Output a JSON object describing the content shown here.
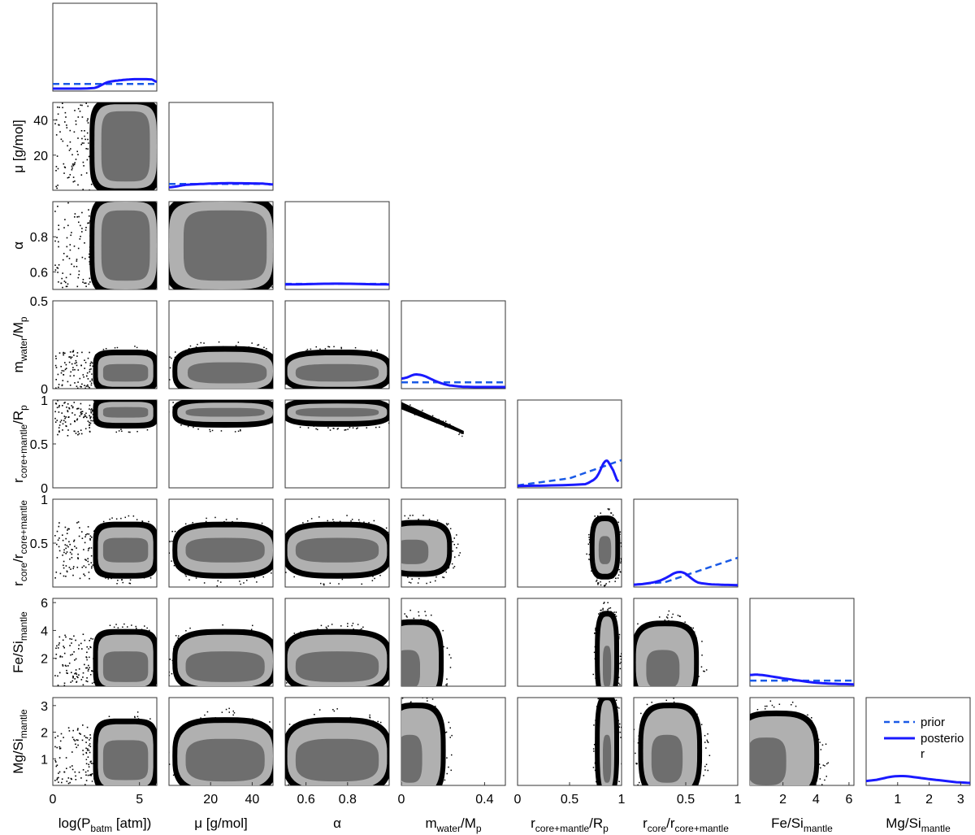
{
  "figure": {
    "type": "corner-plot",
    "colors": {
      "posterior_line": "#1a1aff",
      "prior_line": "#1a5ae6",
      "contour_outer": "#b0b0b0",
      "contour_inner": "#6e6e6e",
      "samples": "#000000"
    }
  },
  "chart_data": {
    "type": "corner",
    "parameters": [
      {
        "key": "p0",
        "label_main": "log(P",
        "label_sub": "batm",
        "label_tail": " [atm])",
        "range": [
          0,
          6
        ],
        "ticks": [
          0,
          5
        ],
        "tick_labels": [
          "0",
          "5"
        ],
        "ylabel": ""
      },
      {
        "key": "p1",
        "label_main": "μ [g/mol]",
        "label_sub": "",
        "label_tail": "",
        "range": [
          0,
          50
        ],
        "ticks": [
          20,
          40
        ],
        "tick_labels": [
          "20",
          "40"
        ],
        "ylabel_main": "μ [g/mol]",
        "ylabel_sub": "",
        "ylabel_tail": "",
        "yticks": [
          20,
          40
        ],
        "ytick_labels": [
          "20",
          "40"
        ]
      },
      {
        "key": "p2",
        "label_main": "α",
        "label_sub": "",
        "label_tail": "",
        "range": [
          0.5,
          1.0
        ],
        "ticks": [
          0.6,
          0.8
        ],
        "tick_labels": [
          "0.6",
          "0.8"
        ],
        "ylabel_main": "α",
        "ylabel_sub": "",
        "ylabel_tail": "",
        "yticks": [
          0.6,
          0.8
        ],
        "ytick_labels": [
          "0.6",
          "0.8"
        ]
      },
      {
        "key": "p3",
        "label_main": "m",
        "label_sub": "water",
        "label_tail": "/M",
        "label_sub2": "p",
        "range": [
          0,
          0.5
        ],
        "ticks": [
          0,
          0.4
        ],
        "tick_labels": [
          "0",
          "0.4"
        ],
        "ylabel_main": "m",
        "ylabel_sub": "water",
        "ylabel_tail": "/M",
        "ylabel_sub2": "p",
        "yticks": [
          0,
          0.5
        ],
        "ytick_labels": [
          "0",
          "0.5"
        ]
      },
      {
        "key": "p4",
        "label_main": "r",
        "label_sub": "core+mantle",
        "label_tail": "/R",
        "label_sub2": "p",
        "range": [
          0,
          1
        ],
        "ticks": [
          0,
          0.5,
          1
        ],
        "tick_labels": [
          "0",
          "0.5",
          "1"
        ],
        "ylabel_main": "r",
        "ylabel_sub": "core+mantle",
        "ylabel_tail": "/R",
        "ylabel_sub2": "p",
        "yticks": [
          0,
          0.5,
          1
        ],
        "ytick_labels": [
          "0",
          "0.5",
          "1"
        ]
      },
      {
        "key": "p5",
        "label_main": "r",
        "label_sub": "core",
        "label_tail": "/r",
        "label_sub2": "core+mantle",
        "range": [
          0,
          1
        ],
        "ticks": [
          0.5,
          1
        ],
        "tick_labels": [
          "0.5",
          "1"
        ],
        "ylabel_main": "r",
        "ylabel_sub": "core",
        "ylabel_tail": "/r",
        "ylabel_sub2": "core+mantle",
        "yticks": [
          0.5,
          1
        ],
        "ytick_labels": [
          "0.5",
          "1"
        ]
      },
      {
        "key": "p6",
        "label_main": "Fe/Si",
        "label_sub": "mantle",
        "label_tail": "",
        "range": [
          0,
          6.3
        ],
        "ticks": [
          2,
          4,
          6
        ],
        "tick_labels": [
          "2",
          "4",
          "6"
        ],
        "ylabel_main": "Fe/Si",
        "ylabel_sub": "mantle",
        "ylabel_tail": "",
        "yticks": [
          2,
          4,
          6
        ],
        "ytick_labels": [
          "2",
          "4",
          "6"
        ]
      },
      {
        "key": "p7",
        "label_main": "Mg/Si",
        "label_sub": "mantle",
        "label_tail": "",
        "range": [
          0,
          3.3
        ],
        "ticks": [
          1,
          2,
          3
        ],
        "tick_labels": [
          "1",
          "2",
          "3"
        ],
        "ylabel_main": "Mg/Si",
        "ylabel_sub": "mantle",
        "ylabel_tail": "",
        "yticks": [
          1,
          2,
          3
        ],
        "ytick_labels": [
          "1",
          "2",
          "3"
        ]
      }
    ],
    "diagonal": [
      {
        "param": "p0",
        "prior": [
          [
            0,
            0.07
          ],
          [
            6,
            0.07
          ]
        ],
        "posterior": [
          [
            0,
            0.01
          ],
          [
            2.4,
            0.01
          ],
          [
            3.2,
            0.1
          ],
          [
            4.5,
            0.13
          ],
          [
            5.7,
            0.13
          ],
          [
            6,
            0.09
          ]
        ],
        "ymax": 1.0
      },
      {
        "param": "p1",
        "prior": [
          [
            0,
            0.06
          ],
          [
            50,
            0.06
          ]
        ],
        "posterior": [
          [
            0,
            0.01
          ],
          [
            8,
            0.05
          ],
          [
            25,
            0.07
          ],
          [
            45,
            0.065
          ],
          [
            50,
            0.05
          ]
        ],
        "ymax": 1.0
      },
      {
        "param": "p2",
        "prior": [
          [
            0.5,
            0.05
          ],
          [
            1.0,
            0.05
          ]
        ],
        "posterior": [
          [
            0.5,
            0.04
          ],
          [
            0.75,
            0.055
          ],
          [
            1.0,
            0.04
          ]
        ],
        "ymax": 1.0
      },
      {
        "param": "p3",
        "prior": [
          [
            0,
            0.06
          ],
          [
            0.5,
            0.06
          ]
        ],
        "posterior": [
          [
            0,
            0.09
          ],
          [
            0.08,
            0.18
          ],
          [
            0.2,
            0.03
          ],
          [
            0.3,
            0.0
          ],
          [
            0.5,
            0.0
          ]
        ],
        "ymax": 1.0
      },
      {
        "param": "p4",
        "prior": [
          [
            0,
            0.01
          ],
          [
            0.5,
            0.1
          ],
          [
            1.0,
            0.33
          ]
        ],
        "posterior": [
          [
            0,
            0.0
          ],
          [
            0.65,
            0.02
          ],
          [
            0.76,
            0.1
          ],
          [
            0.85,
            0.36
          ],
          [
            0.92,
            0.2
          ],
          [
            0.97,
            0.03
          ]
        ],
        "ymax": 1.0
      },
      {
        "param": "p5",
        "prior": [
          [
            0,
            0.01
          ],
          [
            0.3,
            0.04
          ],
          [
            1.0,
            0.35
          ]
        ],
        "posterior": [
          [
            0,
            0.0
          ],
          [
            0.25,
            0.05
          ],
          [
            0.45,
            0.2
          ],
          [
            0.62,
            0.02
          ],
          [
            1.0,
            0.0
          ]
        ],
        "ymax": 1.0
      },
      {
        "param": "p6",
        "prior": [
          [
            0,
            0.05
          ],
          [
            6.3,
            0.05
          ]
        ],
        "posterior": [
          [
            0,
            0.12
          ],
          [
            0.5,
            0.13
          ],
          [
            2,
            0.08
          ],
          [
            4,
            0.02
          ],
          [
            6.3,
            0.0
          ]
        ],
        "ymax": 1.0
      },
      {
        "param": "p7",
        "prior": [],
        "posterior": [
          [
            0,
            0.02
          ],
          [
            1.0,
            0.11
          ],
          [
            2.0,
            0.06
          ],
          [
            3.3,
            0.0
          ]
        ],
        "ymax": 1.0
      }
    ],
    "pairs": [
      {
        "x": "p0",
        "y": "p1",
        "kind": "split",
        "split_at": 2.4,
        "box_x": [
          2.4,
          6.0
        ],
        "box_y": [
          0,
          50
        ],
        "outer": {
          "cx": 4.2,
          "cy": 25,
          "rx": 1.8,
          "ry": 24
        },
        "inner": {
          "cx": 4.2,
          "cy": 25,
          "rx": 1.4,
          "ry": 20
        }
      },
      {
        "x": "p0",
        "y": "p2",
        "kind": "split",
        "split_at": 2.4,
        "box_x": [
          2.4,
          6.0
        ],
        "box_y": [
          0.5,
          1.0
        ],
        "outer": {
          "cx": 4.2,
          "cy": 0.75,
          "rx": 1.8,
          "ry": 0.25
        },
        "inner": {
          "cx": 4.2,
          "cy": 0.75,
          "rx": 1.4,
          "ry": 0.2
        }
      },
      {
        "x": "p1",
        "y": "p2",
        "kind": "box",
        "outer": {
          "cx": 25,
          "cy": 0.75,
          "rx": 25,
          "ry": 0.25
        },
        "inner": {
          "cx": 27,
          "cy": 0.75,
          "rx": 20,
          "ry": 0.2
        }
      },
      {
        "x": "p0",
        "y": "p3",
        "kind": "split",
        "split_at": 2.4,
        "box_x": [
          2.4,
          6.0
        ],
        "box_y": [
          0.0,
          0.22
        ],
        "outer": {
          "cx": 4.2,
          "cy": 0.1,
          "rx": 1.6,
          "ry": 0.09
        },
        "inner": {
          "cx": 4.2,
          "cy": 0.09,
          "rx": 1.3,
          "ry": 0.05
        }
      },
      {
        "x": "p1",
        "y": "p3",
        "kind": "blob",
        "outer": {
          "cx": 27,
          "cy": 0.1,
          "rx": 23,
          "ry": 0.11
        },
        "inner": {
          "cx": 28,
          "cy": 0.09,
          "rx": 19,
          "ry": 0.06
        }
      },
      {
        "x": "p2",
        "y": "p3",
        "kind": "blob",
        "outer": {
          "cx": 0.75,
          "cy": 0.1,
          "rx": 0.24,
          "ry": 0.09
        },
        "inner": {
          "cx": 0.75,
          "cy": 0.09,
          "rx": 0.2,
          "ry": 0.05
        }
      },
      {
        "x": "p0",
        "y": "p4",
        "kind": "split",
        "split_at": 2.4,
        "box_x": [
          2.4,
          6.0
        ],
        "box_y": [
          0.6,
          1.0
        ],
        "outer": {
          "cx": 4.2,
          "cy": 0.86,
          "rx": 1.6,
          "ry": 0.12
        },
        "inner": {
          "cx": 4.2,
          "cy": 0.86,
          "rx": 1.3,
          "ry": 0.06
        }
      },
      {
        "x": "p1",
        "y": "p4",
        "kind": "blob",
        "outer": {
          "cx": 27,
          "cy": 0.86,
          "rx": 23,
          "ry": 0.11
        },
        "inner": {
          "cx": 27,
          "cy": 0.86,
          "rx": 19,
          "ry": 0.05
        }
      },
      {
        "x": "p2",
        "y": "p4",
        "kind": "blob",
        "outer": {
          "cx": 0.75,
          "cy": 0.86,
          "rx": 0.24,
          "ry": 0.1
        },
        "inner": {
          "cx": 0.75,
          "cy": 0.86,
          "rx": 0.2,
          "ry": 0.05
        }
      },
      {
        "x": "p3",
        "y": "p4",
        "kind": "diag",
        "from": [
          0.0,
          0.95
        ],
        "to": [
          0.3,
          0.63
        ]
      },
      {
        "x": "p0",
        "y": "p5",
        "kind": "split",
        "split_at": 2.4,
        "box_x": [
          2.4,
          6.0
        ],
        "box_y": [
          0.1,
          0.75
        ],
        "outer": {
          "cx": 4.2,
          "cy": 0.42,
          "rx": 1.6,
          "ry": 0.26
        },
        "inner": {
          "cx": 4.2,
          "cy": 0.42,
          "rx": 1.3,
          "ry": 0.14
        }
      },
      {
        "x": "p1",
        "y": "p5",
        "kind": "blob",
        "outer": {
          "cx": 27,
          "cy": 0.42,
          "rx": 23,
          "ry": 0.26
        },
        "inner": {
          "cx": 27,
          "cy": 0.42,
          "rx": 19,
          "ry": 0.14
        }
      },
      {
        "x": "p2",
        "y": "p5",
        "kind": "blob",
        "outer": {
          "cx": 0.75,
          "cy": 0.42,
          "rx": 0.24,
          "ry": 0.26
        },
        "inner": {
          "cx": 0.75,
          "cy": 0.42,
          "rx": 0.2,
          "ry": 0.14
        }
      },
      {
        "x": "p3",
        "y": "p5",
        "kind": "blob",
        "outer": {
          "cx": 0.08,
          "cy": 0.44,
          "rx": 0.14,
          "ry": 0.26
        },
        "inner": {
          "cx": 0.05,
          "cy": 0.4,
          "rx": 0.08,
          "ry": 0.14
        }
      },
      {
        "x": "p4",
        "y": "p5",
        "kind": "blob",
        "outer": {
          "cx": 0.84,
          "cy": 0.45,
          "rx": 0.1,
          "ry": 0.3
        },
        "inner": {
          "cx": 0.84,
          "cy": 0.42,
          "rx": 0.06,
          "ry": 0.16
        }
      },
      {
        "x": "p0",
        "y": "p6",
        "kind": "split",
        "split_at": 2.4,
        "box_x": [
          2.4,
          6.0
        ],
        "box_y": [
          0.0,
          3.8
        ],
        "outer": {
          "cx": 4.2,
          "cy": 1.8,
          "rx": 1.6,
          "ry": 1.9
        },
        "inner": {
          "cx": 4.2,
          "cy": 1.4,
          "rx": 1.3,
          "ry": 1.1
        }
      },
      {
        "x": "p1",
        "y": "p6",
        "kind": "blob",
        "outer": {
          "cx": 27,
          "cy": 1.8,
          "rx": 23,
          "ry": 1.9
        },
        "inner": {
          "cx": 27,
          "cy": 1.4,
          "rx": 19,
          "ry": 1.1
        }
      },
      {
        "x": "p2",
        "y": "p6",
        "kind": "blob",
        "outer": {
          "cx": 0.75,
          "cy": 1.8,
          "rx": 0.24,
          "ry": 1.9
        },
        "inner": {
          "cx": 0.75,
          "cy": 1.4,
          "rx": 0.2,
          "ry": 1.1
        }
      },
      {
        "x": "p3",
        "y": "p6",
        "kind": "blob",
        "outer": {
          "cx": 0.06,
          "cy": 1.8,
          "rx": 0.12,
          "ry": 2.6
        },
        "inner": {
          "cx": 0.03,
          "cy": 1.2,
          "rx": 0.06,
          "ry": 1.4
        }
      },
      {
        "x": "p4",
        "y": "p6",
        "kind": "blob",
        "outer": {
          "cx": 0.86,
          "cy": 2.2,
          "rx": 0.07,
          "ry": 2.8
        },
        "inner": {
          "cx": 0.86,
          "cy": 1.4,
          "rx": 0.04,
          "ry": 1.5
        }
      },
      {
        "x": "p5",
        "y": "p6",
        "kind": "blob",
        "outer": {
          "cx": 0.3,
          "cy": 1.7,
          "rx": 0.28,
          "ry": 2.6
        },
        "inner": {
          "cx": 0.28,
          "cy": 1.2,
          "rx": 0.16,
          "ry": 1.4
        }
      },
      {
        "x": "p0",
        "y": "p7",
        "kind": "split",
        "split_at": 2.4,
        "box_x": [
          2.4,
          6.0
        ],
        "box_y": [
          0.0,
          2.3
        ],
        "outer": {
          "cx": 4.2,
          "cy": 1.1,
          "rx": 1.6,
          "ry": 1.2
        },
        "inner": {
          "cx": 4.2,
          "cy": 0.95,
          "rx": 1.3,
          "ry": 0.75
        }
      },
      {
        "x": "p1",
        "y": "p7",
        "kind": "blob",
        "outer": {
          "cx": 27,
          "cy": 1.1,
          "rx": 23,
          "ry": 1.25
        },
        "inner": {
          "cx": 27,
          "cy": 0.95,
          "rx": 19,
          "ry": 0.8
        }
      },
      {
        "x": "p2",
        "y": "p7",
        "kind": "blob",
        "outer": {
          "cx": 0.75,
          "cy": 1.1,
          "rx": 0.24,
          "ry": 1.25
        },
        "inner": {
          "cx": 0.75,
          "cy": 0.95,
          "rx": 0.2,
          "ry": 0.8
        }
      },
      {
        "x": "p3",
        "y": "p7",
        "kind": "blob",
        "outer": {
          "cx": 0.07,
          "cy": 1.3,
          "rx": 0.12,
          "ry": 1.6
        },
        "inner": {
          "cx": 0.04,
          "cy": 1.0,
          "rx": 0.06,
          "ry": 0.9
        }
      },
      {
        "x": "p4",
        "y": "p7",
        "kind": "blob",
        "outer": {
          "cx": 0.86,
          "cy": 1.5,
          "rx": 0.07,
          "ry": 1.7
        },
        "inner": {
          "cx": 0.86,
          "cy": 1.0,
          "rx": 0.04,
          "ry": 0.9
        }
      },
      {
        "x": "p5",
        "y": "p7",
        "kind": "blob",
        "outer": {
          "cx": 0.35,
          "cy": 1.3,
          "rx": 0.26,
          "ry": 1.6
        },
        "inner": {
          "cx": 0.32,
          "cy": 1.0,
          "rx": 0.15,
          "ry": 0.9
        }
      },
      {
        "x": "p6",
        "y": "p7",
        "kind": "blob",
        "outer": {
          "cx": 1.6,
          "cy": 1.1,
          "rx": 2.3,
          "ry": 1.5
        },
        "inner": {
          "cx": 1.0,
          "cy": 0.9,
          "rx": 1.2,
          "ry": 0.9
        }
      }
    ],
    "legend": {
      "placement": "inside bottom-right panel",
      "entries": [
        {
          "label": "prior",
          "style": "dashed"
        },
        {
          "label": "posterio",
          "style": "solid"
        },
        {
          "label": "r",
          "style": "none"
        }
      ]
    }
  }
}
